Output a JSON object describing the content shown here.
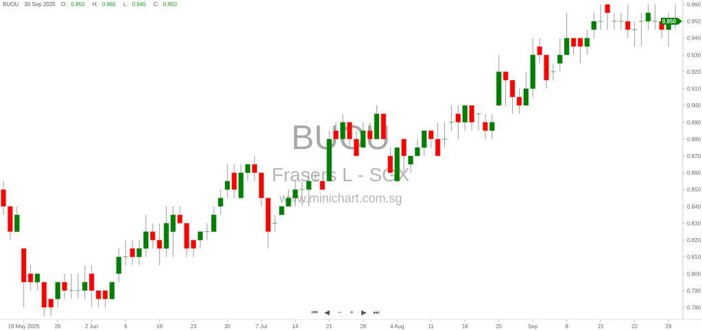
{
  "header": {
    "symbol": "BUOU",
    "date": "30 Sep 2025",
    "open_label": "O:",
    "open": "0.950",
    "high_label": "H:",
    "high": "0.960",
    "low_label": "L:",
    "low": "0.945",
    "close_label": "C:",
    "close": "0.950"
  },
  "watermark": {
    "symbol": "BUOU",
    "name": "Frasers L - SGX",
    "site": "www.minichart.com.sg"
  },
  "nav": {
    "first": "⏮",
    "prev": "◀",
    "zoom_out": "−",
    "zoom_in": "+",
    "next": "▶",
    "last": "⏭"
  },
  "colors": {
    "up": "#008000",
    "down": "#ff0000",
    "wick": "#9a9a9a",
    "last_price_tag": "#008000"
  },
  "chart_data": {
    "type": "candlestick",
    "title": "",
    "ylim": [
      0.775,
      0.962
    ],
    "y_ticks": [
      "0.960",
      "0.950",
      "0.940",
      "0.930",
      "0.920",
      "0.910",
      "0.900",
      "0.890",
      "0.880",
      "0.870",
      "0.860",
      "0.850",
      "0.840",
      "0.830",
      "0.820",
      "0.810",
      "0.800",
      "0.790",
      "0.780"
    ],
    "last_price": "0.950",
    "grid": false,
    "x_ticks": [
      {
        "date": "2025-05-19",
        "label": "19 May 2025"
      },
      {
        "date": "2025-05-26",
        "label": "26"
      },
      {
        "date": "2025-06-02",
        "label": "2 Jun"
      },
      {
        "date": "2025-06-09",
        "label": "9"
      },
      {
        "date": "2025-06-16",
        "label": "16"
      },
      {
        "date": "2025-06-23",
        "label": "23"
      },
      {
        "date": "2025-06-30",
        "label": "30"
      },
      {
        "date": "2025-07-07",
        "label": "7 Jul"
      },
      {
        "date": "2025-07-14",
        "label": "14"
      },
      {
        "date": "2025-07-21",
        "label": "21"
      },
      {
        "date": "2025-07-28",
        "label": "28"
      },
      {
        "date": "2025-08-04",
        "label": "4 Aug"
      },
      {
        "date": "2025-08-11",
        "label": "11"
      },
      {
        "date": "2025-08-18",
        "label": "18"
      },
      {
        "date": "2025-08-25",
        "label": "25"
      },
      {
        "date": "2025-09-01",
        "label": "Sep"
      },
      {
        "date": "2025-09-08",
        "label": "8"
      },
      {
        "date": "2025-09-15",
        "label": "15"
      },
      {
        "date": "2025-09-22",
        "label": "22"
      },
      {
        "date": "2025-09-29",
        "label": "29"
      }
    ],
    "dates": [
      "2025-05-14",
      "2025-05-15",
      "2025-05-16",
      "2025-05-19",
      "2025-05-20",
      "2025-05-21",
      "2025-05-22",
      "2025-05-23",
      "2025-05-26",
      "2025-05-27",
      "2025-05-28",
      "2025-05-29",
      "2025-05-30",
      "2025-06-02",
      "2025-06-03",
      "2025-06-04",
      "2025-06-05",
      "2025-06-06",
      "2025-06-09",
      "2025-06-10",
      "2025-06-11",
      "2025-06-12",
      "2025-06-13",
      "2025-06-16",
      "2025-06-17",
      "2025-06-18",
      "2025-06-19",
      "2025-06-20",
      "2025-06-23",
      "2025-06-24",
      "2025-06-25",
      "2025-06-26",
      "2025-06-27",
      "2025-06-30",
      "2025-07-01",
      "2025-07-02",
      "2025-07-03",
      "2025-07-04",
      "2025-07-07",
      "2025-07-08",
      "2025-07-09",
      "2025-07-10",
      "2025-07-11",
      "2025-07-14",
      "2025-07-15",
      "2025-07-16",
      "2025-07-17",
      "2025-07-18",
      "2025-07-21",
      "2025-07-22",
      "2025-07-23",
      "2025-07-24",
      "2025-07-25",
      "2025-07-28",
      "2025-07-29",
      "2025-07-30",
      "2025-07-31",
      "2025-08-01",
      "2025-08-04",
      "2025-08-05",
      "2025-08-06",
      "2025-08-07",
      "2025-08-08",
      "2025-08-11",
      "2025-08-12",
      "2025-08-13",
      "2025-08-14",
      "2025-08-15",
      "2025-08-18",
      "2025-08-19",
      "2025-08-20",
      "2025-08-21",
      "2025-08-22",
      "2025-08-25",
      "2025-08-26",
      "2025-08-27",
      "2025-08-28",
      "2025-08-29",
      "2025-09-01",
      "2025-09-02",
      "2025-09-03",
      "2025-09-04",
      "2025-09-05",
      "2025-09-08",
      "2025-09-09",
      "2025-09-10",
      "2025-09-11",
      "2025-09-12",
      "2025-09-15",
      "2025-09-16",
      "2025-09-17",
      "2025-09-18",
      "2025-09-19",
      "2025-09-22",
      "2025-09-23",
      "2025-09-24",
      "2025-09-25",
      "2025-09-26",
      "2025-09-29",
      "2025-09-30"
    ],
    "ohlc_fields": [
      "open",
      "high",
      "low",
      "close"
    ],
    "ohlc": [
      [
        0.85,
        0.855,
        0.835,
        0.84
      ],
      [
        0.84,
        0.84,
        0.82,
        0.825
      ],
      [
        0.825,
        0.84,
        0.825,
        0.835
      ],
      [
        0.815,
        0.815,
        0.78,
        0.795
      ],
      [
        0.8,
        0.805,
        0.79,
        0.795
      ],
      [
        0.795,
        0.8,
        0.79,
        0.8
      ],
      [
        0.795,
        0.795,
        0.775,
        0.78
      ],
      [
        0.785,
        0.785,
        0.775,
        0.78
      ],
      [
        0.785,
        0.795,
        0.78,
        0.795
      ],
      [
        0.795,
        0.8,
        0.785,
        0.79
      ],
      [
        0.79,
        0.8,
        0.785,
        0.79
      ],
      [
        0.79,
        0.8,
        0.785,
        0.79
      ],
      [
        0.79,
        0.805,
        0.785,
        0.795
      ],
      [
        0.8,
        0.805,
        0.78,
        0.79
      ],
      [
        0.79,
        0.79,
        0.78,
        0.785
      ],
      [
        0.79,
        0.79,
        0.78,
        0.785
      ],
      [
        0.785,
        0.795,
        0.785,
        0.795
      ],
      [
        0.8,
        0.815,
        0.795,
        0.81
      ],
      [
        0.81,
        0.82,
        0.805,
        0.81
      ],
      [
        0.815,
        0.82,
        0.805,
        0.81
      ],
      [
        0.81,
        0.82,
        0.805,
        0.815
      ],
      [
        0.815,
        0.835,
        0.81,
        0.825
      ],
      [
        0.825,
        0.83,
        0.815,
        0.82
      ],
      [
        0.82,
        0.83,
        0.805,
        0.815
      ],
      [
        0.815,
        0.84,
        0.81,
        0.83
      ],
      [
        0.825,
        0.84,
        0.81,
        0.835
      ],
      [
        0.835,
        0.84,
        0.83,
        0.83
      ],
      [
        0.83,
        0.83,
        0.81,
        0.815
      ],
      [
        0.82,
        0.82,
        0.81,
        0.815
      ],
      [
        0.82,
        0.825,
        0.815,
        0.825
      ],
      [
        0.825,
        0.83,
        0.82,
        0.825
      ],
      [
        0.825,
        0.84,
        0.825,
        0.835
      ],
      [
        0.84,
        0.85,
        0.835,
        0.845
      ],
      [
        0.85,
        0.865,
        0.845,
        0.855
      ],
      [
        0.86,
        0.865,
        0.845,
        0.85
      ],
      [
        0.845,
        0.865,
        0.845,
        0.86
      ],
      [
        0.86,
        0.865,
        0.855,
        0.865
      ],
      [
        0.865,
        0.87,
        0.855,
        0.86
      ],
      [
        0.86,
        0.86,
        0.84,
        0.845
      ],
      [
        0.845,
        0.845,
        0.815,
        0.825
      ],
      [
        0.83,
        0.835,
        0.825,
        0.83
      ],
      [
        0.835,
        0.84,
        0.835,
        0.84
      ],
      [
        0.84,
        0.85,
        0.84,
        0.845
      ],
      [
        0.845,
        0.855,
        0.84,
        0.85
      ],
      [
        0.85,
        0.855,
        0.84,
        0.85
      ],
      [
        0.85,
        0.86,
        0.84,
        0.855
      ],
      [
        0.855,
        0.86,
        0.855,
        0.855
      ],
      [
        0.855,
        0.855,
        0.85,
        0.85
      ],
      [
        0.855,
        0.885,
        0.855,
        0.88
      ],
      [
        0.885,
        0.89,
        0.88,
        0.88
      ],
      [
        0.88,
        0.895,
        0.88,
        0.89
      ],
      [
        0.89,
        0.89,
        0.875,
        0.88
      ],
      [
        0.88,
        0.885,
        0.87,
        0.87
      ],
      [
        0.875,
        0.89,
        0.875,
        0.885
      ],
      [
        0.885,
        0.89,
        0.88,
        0.88
      ],
      [
        0.88,
        0.9,
        0.88,
        0.895
      ],
      [
        0.895,
        0.895,
        0.88,
        0.88
      ],
      [
        0.87,
        0.875,
        0.86,
        0.86
      ],
      [
        0.855,
        0.875,
        0.855,
        0.875
      ],
      [
        0.88,
        0.88,
        0.86,
        0.87
      ],
      [
        0.865,
        0.87,
        0.86,
        0.87
      ],
      [
        0.87,
        0.88,
        0.87,
        0.875
      ],
      [
        0.875,
        0.885,
        0.87,
        0.885
      ],
      [
        0.885,
        0.885,
        0.875,
        0.88
      ],
      [
        0.88,
        0.89,
        0.87,
        0.87
      ],
      [
        0.88,
        0.89,
        0.875,
        0.88
      ],
      [
        0.89,
        0.9,
        0.885,
        0.89
      ],
      [
        0.895,
        0.9,
        0.88,
        0.89
      ],
      [
        0.89,
        0.9,
        0.885,
        0.9
      ],
      [
        0.9,
        0.9,
        0.885,
        0.89
      ],
      [
        0.895,
        0.895,
        0.885,
        0.895
      ],
      [
        0.89,
        0.895,
        0.88,
        0.885
      ],
      [
        0.885,
        0.895,
        0.88,
        0.89
      ],
      [
        0.9,
        0.93,
        0.9,
        0.92
      ],
      [
        0.92,
        0.92,
        0.9,
        0.915
      ],
      [
        0.915,
        0.915,
        0.895,
        0.905
      ],
      [
        0.905,
        0.91,
        0.895,
        0.9
      ],
      [
        0.9,
        0.92,
        0.9,
        0.91
      ],
      [
        0.91,
        0.94,
        0.905,
        0.93
      ],
      [
        0.935,
        0.94,
        0.925,
        0.93
      ],
      [
        0.93,
        0.93,
        0.91,
        0.915
      ],
      [
        0.92,
        0.925,
        0.915,
        0.92
      ],
      [
        0.925,
        0.94,
        0.92,
        0.93
      ],
      [
        0.93,
        0.955,
        0.93,
        0.94
      ],
      [
        0.94,
        0.94,
        0.93,
        0.935
      ],
      [
        0.94,
        0.94,
        0.925,
        0.935
      ],
      [
        0.935,
        0.945,
        0.93,
        0.94
      ],
      [
        0.945,
        0.955,
        0.94,
        0.95
      ],
      [
        0.95,
        0.96,
        0.945,
        0.95
      ],
      [
        0.96,
        0.96,
        0.945,
        0.955
      ],
      [
        0.95,
        0.955,
        0.945,
        0.95
      ],
      [
        0.95,
        0.955,
        0.945,
        0.95
      ],
      [
        0.95,
        0.96,
        0.94,
        0.945
      ],
      [
        0.945,
        0.95,
        0.935,
        0.945
      ],
      [
        0.95,
        0.955,
        0.935,
        0.95
      ],
      [
        0.95,
        0.96,
        0.945,
        0.955
      ],
      [
        0.95,
        0.96,
        0.945,
        0.95
      ],
      [
        0.95,
        0.95,
        0.94,
        0.945
      ],
      [
        0.945,
        0.955,
        0.935,
        0.95
      ],
      [
        0.95,
        0.96,
        0.945,
        0.95
      ]
    ]
  }
}
